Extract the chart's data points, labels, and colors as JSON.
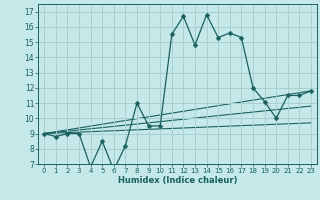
{
  "xlabel": "Humidex (Indice chaleur)",
  "background_color": "#c5e8e8",
  "grid_color": "#a8d0d0",
  "line_color": "#1a6060",
  "xlim": [
    -0.5,
    23.5
  ],
  "ylim": [
    7,
    17.5
  ],
  "yticks": [
    7,
    8,
    9,
    10,
    11,
    12,
    13,
    14,
    15,
    16,
    17
  ],
  "xticks": [
    0,
    1,
    2,
    3,
    4,
    5,
    6,
    7,
    8,
    9,
    10,
    11,
    12,
    13,
    14,
    15,
    16,
    17,
    18,
    19,
    20,
    21,
    22,
    23
  ],
  "main_series": {
    "x": [
      0,
      1,
      2,
      3,
      4,
      5,
      6,
      7,
      8,
      9,
      10,
      11,
      12,
      13,
      14,
      15,
      16,
      17,
      18,
      19,
      20,
      21,
      22,
      23
    ],
    "y": [
      9.0,
      8.8,
      9.0,
      9.0,
      6.8,
      8.5,
      6.6,
      8.2,
      11.0,
      9.5,
      9.5,
      15.5,
      16.7,
      14.8,
      16.8,
      15.3,
      15.6,
      15.3,
      12.0,
      11.1,
      10.0,
      11.5,
      11.5,
      11.8
    ]
  },
  "trend_lines": [
    {
      "x": [
        0,
        23
      ],
      "y": [
        9.0,
        11.8
      ]
    },
    {
      "x": [
        0,
        23
      ],
      "y": [
        9.0,
        10.8
      ]
    },
    {
      "x": [
        0,
        23
      ],
      "y": [
        9.0,
        9.7
      ]
    }
  ]
}
